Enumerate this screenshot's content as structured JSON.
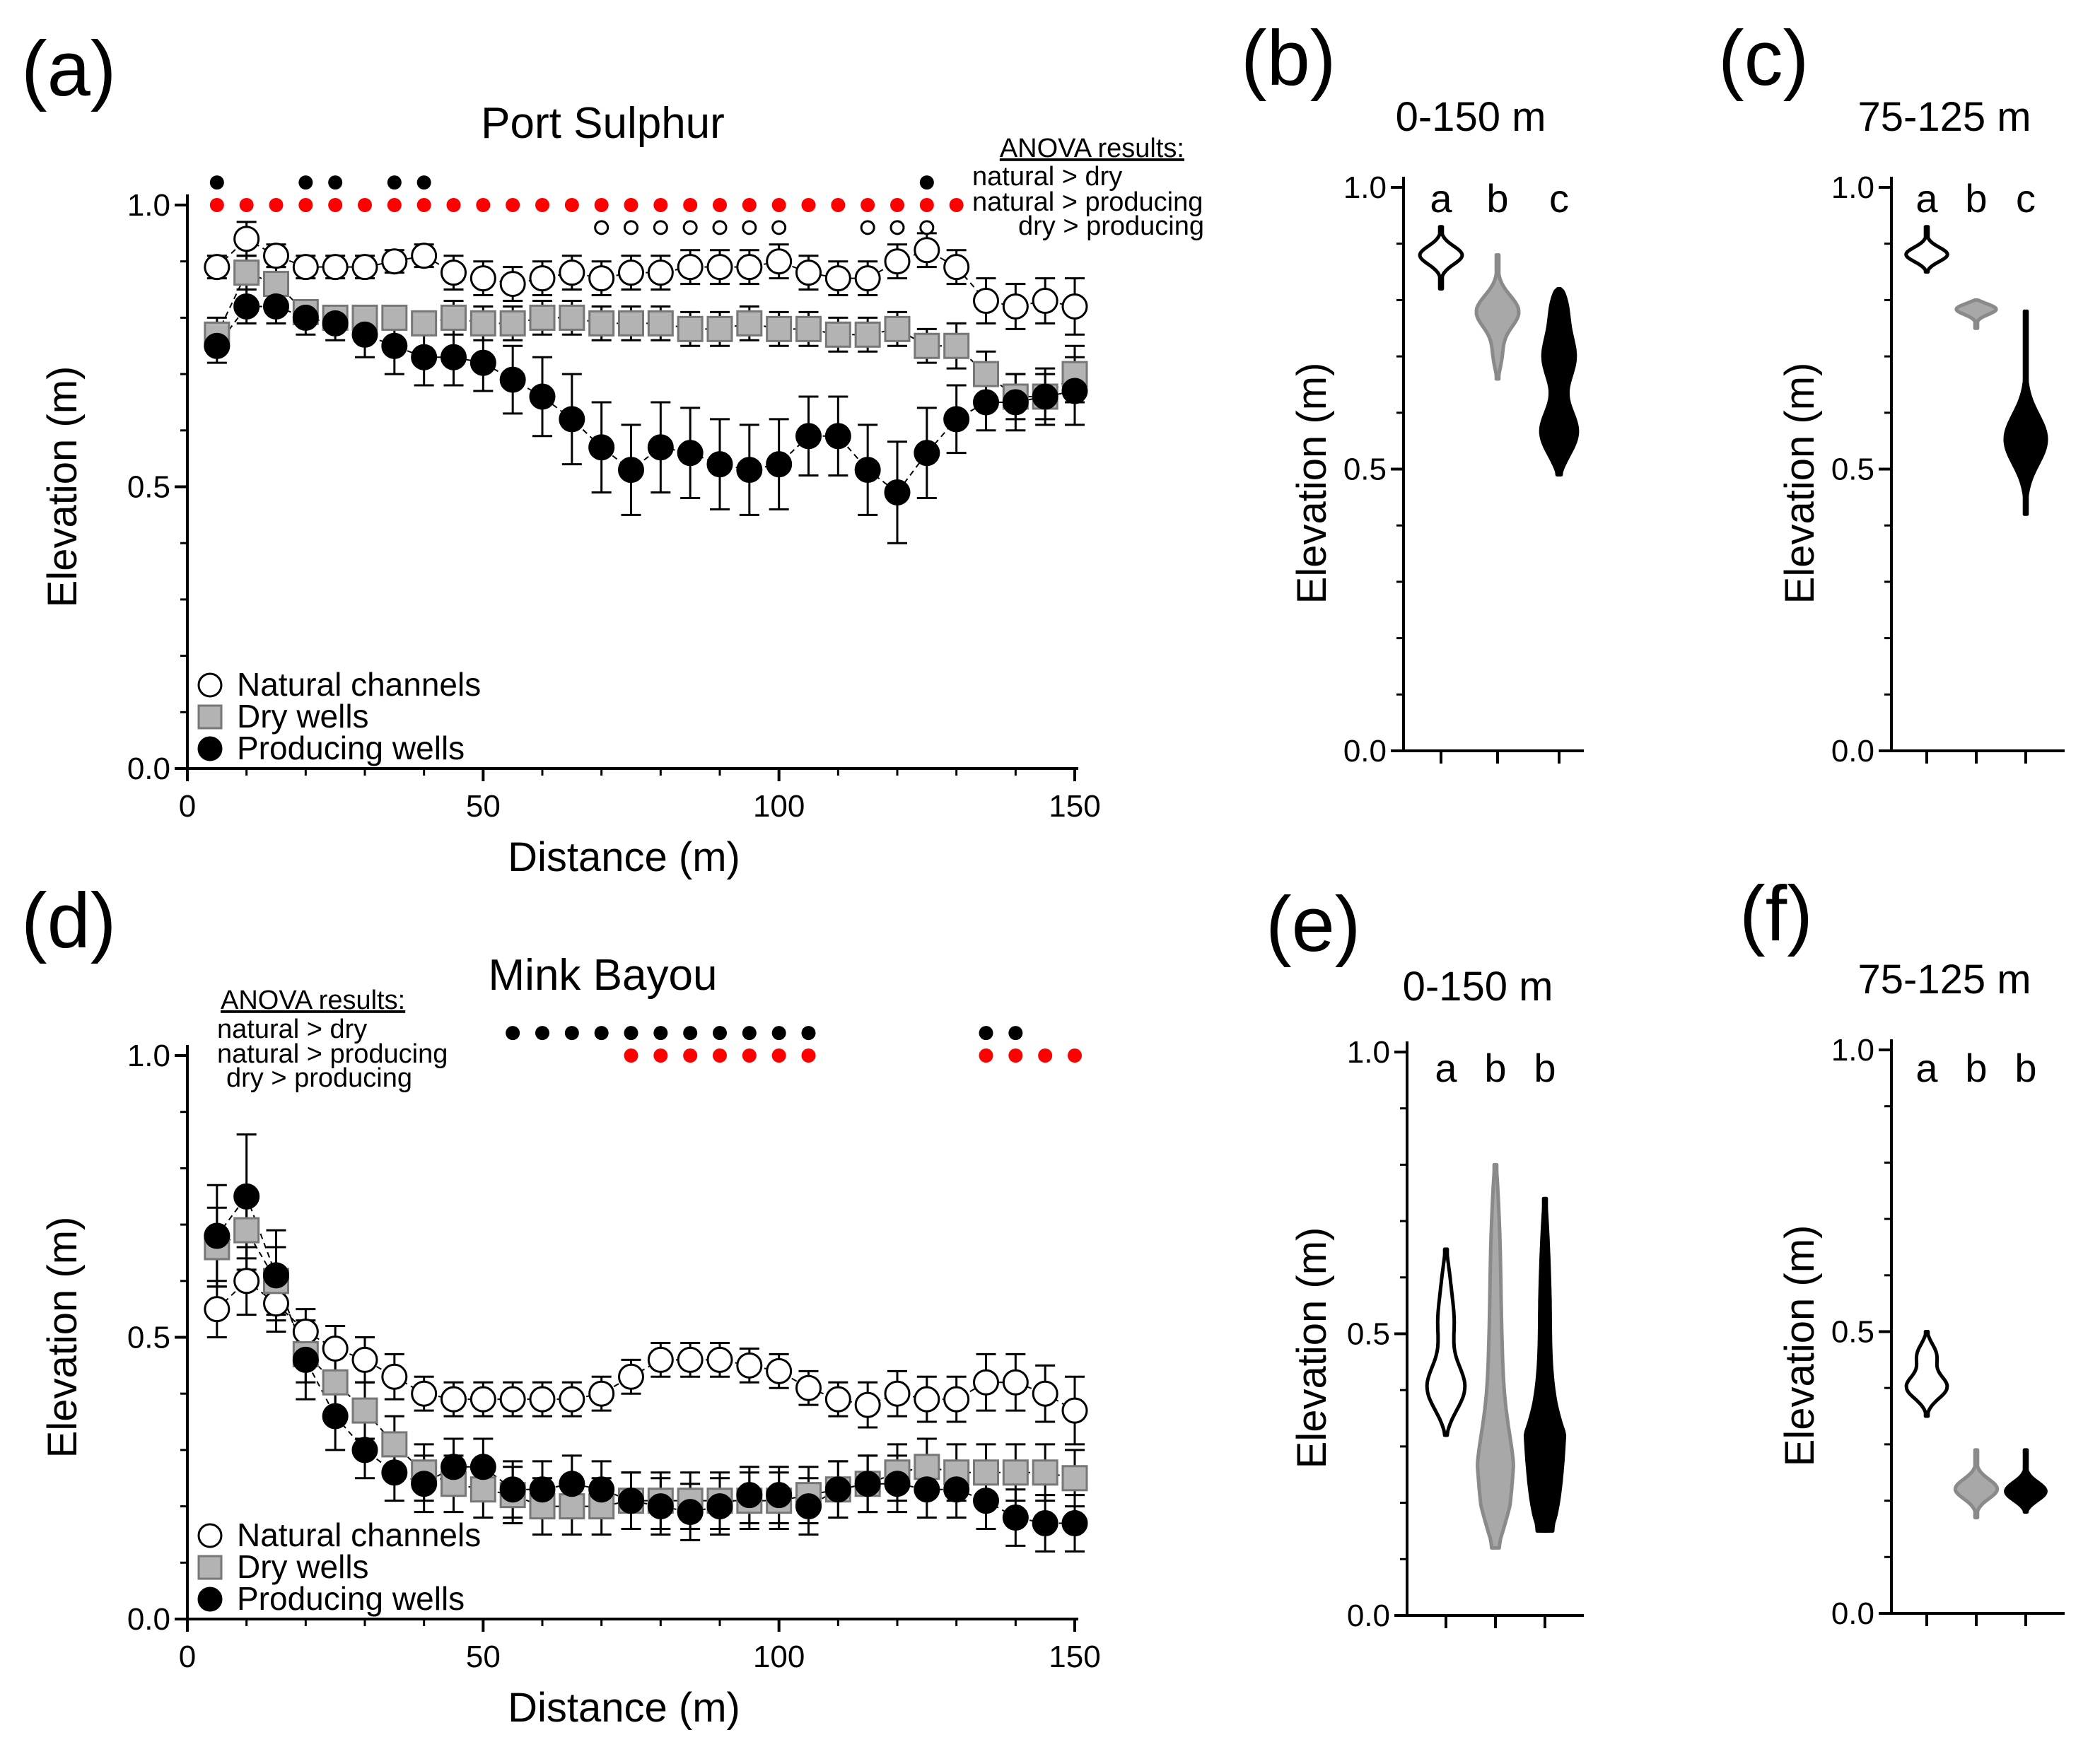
{
  "figure": {
    "colors": {
      "natural_fill": "#ffffff",
      "dry_fill": "#b3b3b3",
      "producing_fill": "#000000",
      "sig_black": "#000000",
      "sig_red": "#ff0000",
      "axis": "#000000"
    }
  },
  "chart_data": [
    {
      "id": "a",
      "type": "scatter",
      "panel_label": "(a)",
      "title": "Port Sulphur",
      "xlabel": "Distance (m)",
      "ylabel": "Elevation (m)",
      "xlim": [
        0,
        150
      ],
      "ylim": [
        0,
        1.0
      ],
      "xticks": [
        "0",
        "50",
        "100",
        "150"
      ],
      "yticks": [
        "0.0",
        "0.5",
        "1.0"
      ],
      "legend": {
        "position": "bottom-left",
        "entries": [
          "Natural channels",
          "Dry wells",
          "Producing wells"
        ]
      },
      "anova": {
        "title": "ANOVA results:",
        "lines": [
          "natural > dry",
          "natural > producing",
          "dry > producing"
        ]
      },
      "x": [
        5,
        10,
        15,
        20,
        25,
        30,
        35,
        40,
        45,
        50,
        55,
        60,
        65,
        70,
        75,
        80,
        85,
        90,
        95,
        100,
        105,
        110,
        115,
        120,
        125,
        130,
        135,
        140,
        145,
        150
      ],
      "series": [
        {
          "name": "Natural channels",
          "marker": "circle",
          "color": "#ffffff",
          "values": [
            0.89,
            0.94,
            0.91,
            0.89,
            0.89,
            0.89,
            0.9,
            0.91,
            0.88,
            0.87,
            0.86,
            0.87,
            0.88,
            0.87,
            0.88,
            0.88,
            0.89,
            0.89,
            0.89,
            0.9,
            0.88,
            0.87,
            0.87,
            0.9,
            0.92,
            0.89,
            0.83,
            0.82,
            0.83,
            0.82
          ],
          "errors": [
            0.02,
            0.03,
            0.02,
            0.02,
            0.02,
            0.02,
            0.02,
            0.02,
            0.03,
            0.03,
            0.03,
            0.03,
            0.03,
            0.03,
            0.03,
            0.03,
            0.03,
            0.03,
            0.03,
            0.03,
            0.03,
            0.03,
            0.03,
            0.03,
            0.03,
            0.03,
            0.04,
            0.04,
            0.04,
            0.05
          ]
        },
        {
          "name": "Dry wells",
          "marker": "square",
          "color": "#b3b3b3",
          "values": [
            0.77,
            0.88,
            0.86,
            0.81,
            0.8,
            0.8,
            0.8,
            0.79,
            0.8,
            0.79,
            0.79,
            0.8,
            0.8,
            0.79,
            0.79,
            0.79,
            0.78,
            0.78,
            0.79,
            0.78,
            0.78,
            0.77,
            0.77,
            0.78,
            0.75,
            0.75,
            0.7,
            0.66,
            0.66,
            0.7
          ],
          "errors": [
            0.03,
            0.03,
            0.03,
            0.02,
            0.02,
            0.02,
            0.02,
            0.02,
            0.03,
            0.03,
            0.03,
            0.03,
            0.03,
            0.03,
            0.03,
            0.03,
            0.03,
            0.03,
            0.03,
            0.03,
            0.03,
            0.03,
            0.03,
            0.03,
            0.03,
            0.04,
            0.04,
            0.04,
            0.04,
            0.05
          ]
        },
        {
          "name": "Producing wells",
          "marker": "circle",
          "color": "#000000",
          "values": [
            0.75,
            0.82,
            0.82,
            0.8,
            0.79,
            0.77,
            0.75,
            0.73,
            0.73,
            0.72,
            0.69,
            0.66,
            0.62,
            0.57,
            0.53,
            0.57,
            0.56,
            0.54,
            0.53,
            0.54,
            0.59,
            0.59,
            0.53,
            0.49,
            0.56,
            0.62,
            0.65,
            0.65,
            0.66,
            0.67
          ],
          "errors": [
            0.03,
            0.03,
            0.03,
            0.03,
            0.03,
            0.04,
            0.05,
            0.05,
            0.05,
            0.05,
            0.06,
            0.07,
            0.08,
            0.08,
            0.08,
            0.08,
            0.08,
            0.08,
            0.08,
            0.08,
            0.07,
            0.07,
            0.08,
            0.09,
            0.08,
            0.06,
            0.05,
            0.05,
            0.05,
            0.06
          ]
        }
      ],
      "significance": [
        {
          "label": "natural > dry",
          "style": "filled-black",
          "y": 1.04,
          "x": [
            5,
            20,
            25,
            35,
            40,
            125
          ]
        },
        {
          "label": "natural > producing",
          "style": "filled-red",
          "y": 1.0,
          "x": [
            5,
            10,
            15,
            20,
            25,
            30,
            35,
            40,
            45,
            50,
            55,
            60,
            65,
            70,
            75,
            80,
            85,
            90,
            95,
            100,
            105,
            110,
            115,
            120,
            125,
            130
          ]
        },
        {
          "label": "dry > producing",
          "style": "open",
          "y": 0.96,
          "x": [
            70,
            75,
            80,
            85,
            90,
            95,
            100,
            115,
            120,
            125
          ]
        }
      ]
    },
    {
      "id": "b",
      "type": "violin",
      "panel_label": "(b)",
      "title": "0-150 m",
      "ylabel": "Elevation (m)",
      "ylim": [
        0,
        1.0
      ],
      "yticks": [
        "0.0",
        "0.5",
        "1.0"
      ],
      "groups": [
        {
          "name": "Natural channels",
          "letter": "a",
          "color": "#ffffff",
          "min": 0.82,
          "max": 0.93,
          "peaks": [
            [
              0.88,
              1.0
            ]
          ]
        },
        {
          "name": "Dry wells",
          "letter": "b",
          "color": "#a8a8a8",
          "min": 0.66,
          "max": 0.88,
          "peaks": [
            [
              0.78,
              1.0
            ],
            [
              0.7,
              0.25
            ]
          ]
        },
        {
          "name": "Producing wells",
          "letter": "c",
          "color": "#000000",
          "min": 0.49,
          "max": 0.82,
          "peaks": [
            [
              0.56,
              1.0
            ],
            [
              0.7,
              0.75
            ],
            [
              0.8,
              0.55
            ]
          ]
        }
      ]
    },
    {
      "id": "c",
      "type": "violin",
      "panel_label": "(c)",
      "title": "75-125 m",
      "ylabel": "Elevation (m)",
      "ylim": [
        0,
        1.0
      ],
      "yticks": [
        "0.0",
        "0.5",
        "1.0"
      ],
      "groups": [
        {
          "name": "Natural channels",
          "letter": "a",
          "color": "#ffffff",
          "min": 0.85,
          "max": 0.93,
          "peaks": [
            [
              0.88,
              1.0
            ]
          ]
        },
        {
          "name": "Dry wells",
          "letter": "b",
          "color": "#a8a8a8",
          "min": 0.75,
          "max": 0.8,
          "peaks": [
            [
              0.785,
              1.0
            ]
          ]
        },
        {
          "name": "Producing wells",
          "letter": "c",
          "color": "#000000",
          "min": 0.42,
          "max": 0.78,
          "peaks": [
            [
              0.55,
              1.0
            ]
          ]
        }
      ]
    },
    {
      "id": "d",
      "type": "scatter",
      "panel_label": "(d)",
      "title": "Mink Bayou",
      "xlabel": "Distance (m)",
      "ylabel": "Elevation (m)",
      "xlim": [
        0,
        150
      ],
      "ylim": [
        0,
        1.0
      ],
      "xticks": [
        "0",
        "50",
        "100",
        "150"
      ],
      "yticks": [
        "0.0",
        "0.5",
        "1.0"
      ],
      "legend": {
        "position": "bottom-left",
        "entries": [
          "Natural channels",
          "Dry wells",
          "Producing wells"
        ]
      },
      "anova": {
        "title": "ANOVA results:",
        "lines": [
          "natural > dry",
          "natural > producing",
          "dry > producing"
        ]
      },
      "x": [
        5,
        10,
        15,
        20,
        25,
        30,
        35,
        40,
        45,
        50,
        55,
        60,
        65,
        70,
        75,
        80,
        85,
        90,
        95,
        100,
        105,
        110,
        115,
        120,
        125,
        130,
        135,
        140,
        145,
        150
      ],
      "series": [
        {
          "name": "Natural channels",
          "marker": "circle",
          "color": "#ffffff",
          "values": [
            0.55,
            0.6,
            0.56,
            0.51,
            0.48,
            0.46,
            0.43,
            0.4,
            0.39,
            0.39,
            0.39,
            0.39,
            0.39,
            0.4,
            0.43,
            0.46,
            0.46,
            0.46,
            0.45,
            0.44,
            0.41,
            0.39,
            0.38,
            0.4,
            0.39,
            0.39,
            0.42,
            0.42,
            0.4,
            0.37
          ],
          "errors": [
            0.05,
            0.06,
            0.05,
            0.04,
            0.04,
            0.04,
            0.04,
            0.03,
            0.03,
            0.03,
            0.03,
            0.03,
            0.03,
            0.03,
            0.03,
            0.03,
            0.03,
            0.03,
            0.03,
            0.03,
            0.03,
            0.03,
            0.04,
            0.04,
            0.04,
            0.04,
            0.05,
            0.05,
            0.05,
            0.06
          ]
        },
        {
          "name": "Dry wells",
          "marker": "square",
          "color": "#b3b3b3",
          "values": [
            0.66,
            0.69,
            0.6,
            0.47,
            0.42,
            0.37,
            0.31,
            0.26,
            0.24,
            0.23,
            0.22,
            0.2,
            0.2,
            0.2,
            0.21,
            0.21,
            0.21,
            0.21,
            0.21,
            0.21,
            0.22,
            0.23,
            0.24,
            0.26,
            0.27,
            0.26,
            0.26,
            0.26,
            0.26,
            0.25
          ],
          "errors": [
            0.07,
            0.07,
            0.06,
            0.05,
            0.05,
            0.05,
            0.05,
            0.05,
            0.05,
            0.05,
            0.05,
            0.05,
            0.05,
            0.05,
            0.05,
            0.05,
            0.05,
            0.05,
            0.05,
            0.05,
            0.05,
            0.05,
            0.05,
            0.05,
            0.05,
            0.05,
            0.05,
            0.05,
            0.05,
            0.05
          ]
        },
        {
          "name": "Producing wells",
          "marker": "circle",
          "color": "#000000",
          "values": [
            0.68,
            0.75,
            0.61,
            0.46,
            0.36,
            0.3,
            0.26,
            0.24,
            0.27,
            0.27,
            0.23,
            0.23,
            0.24,
            0.23,
            0.21,
            0.2,
            0.19,
            0.2,
            0.22,
            0.22,
            0.2,
            0.23,
            0.24,
            0.24,
            0.23,
            0.23,
            0.21,
            0.18,
            0.17,
            0.17
          ],
          "errors": [
            0.09,
            0.11,
            0.08,
            0.07,
            0.06,
            0.05,
            0.05,
            0.05,
            0.05,
            0.05,
            0.05,
            0.05,
            0.05,
            0.05,
            0.05,
            0.05,
            0.05,
            0.05,
            0.05,
            0.05,
            0.05,
            0.05,
            0.05,
            0.05,
            0.05,
            0.05,
            0.05,
            0.05,
            0.05,
            0.05
          ]
        }
      ],
      "significance": [
        {
          "label": "natural > dry",
          "style": "filled-black",
          "y": 1.04,
          "x": [
            55,
            60,
            65,
            70,
            75,
            80,
            85,
            90,
            95,
            100,
            105,
            135,
            140
          ]
        },
        {
          "label": "natural > producing",
          "style": "filled-red",
          "y": 1.0,
          "x": [
            75,
            80,
            85,
            90,
            95,
            100,
            105,
            135,
            140,
            145,
            150
          ]
        }
      ]
    },
    {
      "id": "e",
      "type": "violin",
      "panel_label": "(e)",
      "title": "0-150 m",
      "ylabel": "Elevation (m)",
      "ylim": [
        0,
        1.0
      ],
      "yticks": [
        "0.0",
        "0.5",
        "1.0"
      ],
      "groups": [
        {
          "name": "Natural channels",
          "letter": "a",
          "color": "#ffffff",
          "min": 0.32,
          "max": 0.65,
          "peaks": [
            [
              0.4,
              1.0
            ],
            [
              0.52,
              0.35
            ],
            [
              0.6,
              0.2
            ]
          ]
        },
        {
          "name": "Dry wells",
          "letter": "b",
          "color": "#a8a8a8",
          "min": 0.12,
          "max": 0.8,
          "peaks": [
            [
              0.22,
              1.0
            ],
            [
              0.35,
              0.25
            ],
            [
              0.48,
              0.2
            ],
            [
              0.62,
              0.18
            ],
            [
              0.75,
              0.15
            ]
          ]
        },
        {
          "name": "Producing wells",
          "letter": "b",
          "color": "#000000",
          "min": 0.15,
          "max": 0.74,
          "peaks": [
            [
              0.21,
              1.0
            ],
            [
              0.26,
              0.85
            ],
            [
              0.4,
              0.25
            ],
            [
              0.55,
              0.2
            ],
            [
              0.68,
              0.15
            ]
          ]
        }
      ]
    },
    {
      "id": "f",
      "type": "violin",
      "panel_label": "(f)",
      "title": "75-125 m",
      "ylabel": "Elevation (m)",
      "ylim": [
        0,
        1.0
      ],
      "yticks": [
        "0.0",
        "0.5",
        "1.0"
      ],
      "groups": [
        {
          "name": "Natural channels",
          "letter": "a",
          "color": "#ffffff",
          "min": 0.35,
          "max": 0.5,
          "peaks": [
            [
              0.4,
              1.0
            ],
            [
              0.46,
              0.5
            ]
          ]
        },
        {
          "name": "Dry wells",
          "letter": "b",
          "color": "#a8a8a8",
          "min": 0.17,
          "max": 0.29,
          "peaks": [
            [
              0.22,
              1.0
            ]
          ]
        },
        {
          "name": "Producing wells",
          "letter": "b",
          "color": "#000000",
          "min": 0.18,
          "max": 0.29,
          "peaks": [
            [
              0.215,
              1.0
            ]
          ]
        }
      ]
    }
  ]
}
